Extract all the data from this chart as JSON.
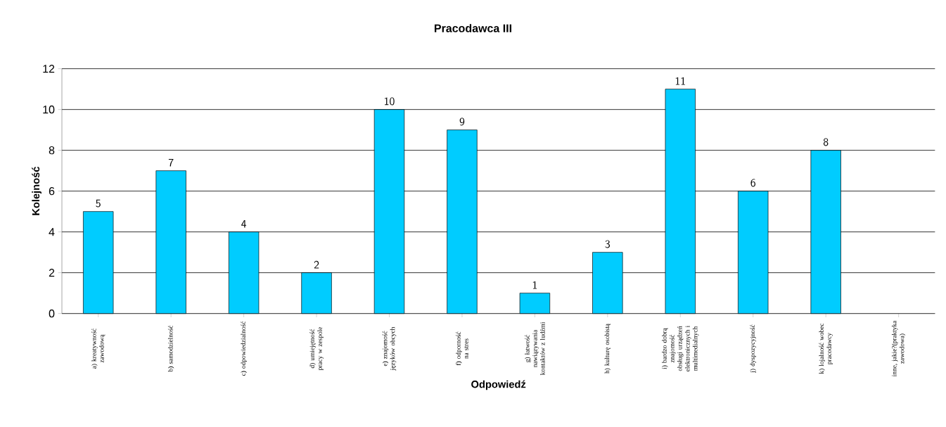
{
  "chart_data": {
    "type": "bar",
    "title": "Pracodawca III",
    "xlabel": "Odpowiedź",
    "ylabel": "Kolejność",
    "categories": [
      "a)    kreatywność zawodową",
      "b)    samodzielność",
      "c)    odpowiedzialność",
      "d)    umiejętność pracy w zespole",
      "e)    znajomość języków obcych",
      "f)    odporność na stres",
      "g)    łatwość nawiązywania kontaktów z ludźmi",
      "h)    kulturę osobistą",
      "i)    bardzo dobrą znajomość obsługi urządzeń elektronicznych i multimedialnych",
      "j)    dyspozycyjność",
      "k)    lojalność wobec pracodawcy",
      "inne, jakie?(praktyka zawodowa)"
    ],
    "values": [
      5,
      7,
      4,
      2,
      10,
      9,
      1,
      3,
      11,
      6,
      8,
      null
    ],
    "color": "#00ccff",
    "ylim": [
      0,
      12
    ],
    "yticks": [
      0,
      2,
      4,
      6,
      8,
      10,
      12
    ],
    "grid": "y",
    "data_labels": true
  }
}
